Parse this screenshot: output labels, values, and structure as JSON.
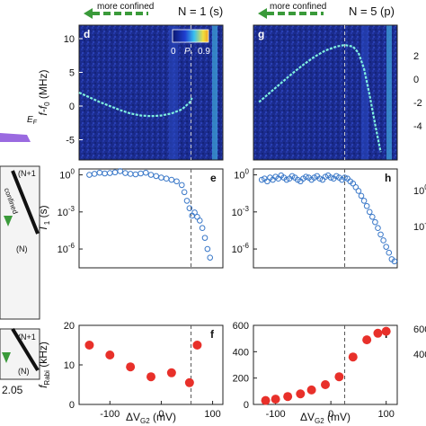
{
  "headers": {
    "left": {
      "arrow_label": "more confined",
      "state_label": "N = 1 (s)"
    },
    "right": {
      "arrow_label": "more confined",
      "state_label": "N = 5 (p)"
    }
  },
  "left_strip": {
    "ef_label": "E",
    "ef_sub": "F",
    "confined_label": "confined",
    "n_plus_top": "(N+1",
    "n_top": "(N)",
    "n_plus_bottom": "(N+1",
    "n_bottom": "(N)",
    "x_tick": "2.05"
  },
  "colors": {
    "map_background": "#1a2a8c",
    "trace": "#7ff0e0",
    "hollow_marker": "#3a78c8",
    "red_marker": "#e8302a",
    "arrow_green": "#3a9a3a",
    "colorbar": [
      "#0a1670",
      "#1f3fd0",
      "#38c0f0",
      "#f0e040",
      "#f0a020"
    ]
  },
  "colorbar": {
    "min_label": "0",
    "symbol": "P",
    "sub": "↑",
    "max_label": "0.9"
  },
  "x_axis": {
    "label": "ΔV",
    "sub": "G2",
    "unit": "(mV)"
  },
  "chart_data": [
    {
      "id": "d",
      "panel": "d",
      "type": "heatmap",
      "ylabel": "f-f",
      "ylabel_sub": "0",
      "ylabel_unit": "(MHz)",
      "ylim": [
        -8,
        12
      ],
      "xlim": [
        -160,
        120
      ],
      "yticks": [
        10,
        5,
        0,
        -5
      ],
      "ytick_labels": [
        "10",
        "5",
        "0",
        "-5"
      ],
      "dashed_x": 58,
      "x": [
        -160,
        -140,
        -120,
        -100,
        -80,
        -60,
        -40,
        -20,
        0,
        20,
        40,
        55,
        60
      ],
      "y": [
        2.0,
        1.3,
        0.6,
        0.0,
        -0.6,
        -1.1,
        -1.4,
        -1.5,
        -1.4,
        -1.1,
        -0.5,
        0.5,
        1.2
      ]
    },
    {
      "id": "g",
      "panel": "g",
      "type": "heatmap",
      "ylim": [
        -5,
        12
      ],
      "xlim": [
        -140,
        120
      ],
      "dashed_x": 25,
      "x": [
        -130,
        -110,
        -90,
        -70,
        -50,
        -30,
        -10,
        10,
        25,
        40,
        50,
        60,
        70,
        80,
        90
      ],
      "y": [
        2.3,
        3.5,
        4.7,
        5.9,
        7.0,
        8.0,
        8.8,
        9.3,
        9.5,
        9.3,
        8.5,
        6.5,
        3.2,
        -0.5,
        -4.0
      ],
      "right_ticks": [
        "2",
        "0",
        "-2",
        "-4"
      ]
    },
    {
      "id": "e",
      "panel": "e",
      "type": "scatter",
      "ylabel": "T",
      "ylabel_sub": "1",
      "ylabel_unit": "(s)",
      "yscale": "log",
      "ylim": [
        3e-08,
        3
      ],
      "yticks": [
        1,
        0.001,
        1e-06
      ],
      "ytick_labels": [
        "10",
        "10",
        "10"
      ],
      "ytick_exp": [
        "0",
        "-3",
        "-6"
      ],
      "xlim": [
        -160,
        120
      ],
      "dashed_x": 58,
      "x": [
        -140,
        -130,
        -120,
        -110,
        -100,
        -90,
        -80,
        -70,
        -60,
        -50,
        -40,
        -30,
        -20,
        -10,
        0,
        10,
        20,
        30,
        40,
        45,
        50,
        55,
        60,
        65,
        70,
        75,
        80,
        85,
        90,
        95
      ],
      "y": [
        1.0,
        1.2,
        1.5,
        1.3,
        1.4,
        1.6,
        2.0,
        1.4,
        1.2,
        1.1,
        1.3,
        1.5,
        1.0,
        0.8,
        0.6,
        0.5,
        0.4,
        0.3,
        0.15,
        0.04,
        0.008,
        0.002,
        0.0005,
        0.0009,
        0.0004,
        0.0002,
        5e-05,
        8e-06,
        1e-06,
        2e-07
      ]
    },
    {
      "id": "h",
      "panel": "h",
      "type": "scatter",
      "yscale": "log",
      "ylim": [
        3e-08,
        3
      ],
      "yticks": [
        1,
        0.001,
        1e-06
      ],
      "ytick_labels": [
        "10",
        "10",
        "10"
      ],
      "ytick_exp": [
        "0",
        "-3",
        "-6"
      ],
      "xlim": [
        -140,
        120
      ],
      "dashed_x": 25,
      "x": [
        -125,
        -120,
        -115,
        -110,
        -105,
        -100,
        -95,
        -90,
        -85,
        -80,
        -75,
        -70,
        -65,
        -60,
        -55,
        -50,
        -45,
        -40,
        -35,
        -30,
        -25,
        -20,
        -15,
        -10,
        -5,
        0,
        5,
        10,
        15,
        20,
        25,
        30,
        35,
        40,
        45,
        50,
        55,
        60,
        65,
        70,
        75,
        80,
        85,
        90,
        95,
        100,
        105,
        110,
        115
      ],
      "y": [
        0.4,
        0.5,
        0.3,
        0.6,
        0.4,
        0.7,
        0.5,
        0.9,
        0.6,
        0.4,
        0.5,
        0.8,
        0.6,
        0.4,
        0.3,
        0.5,
        0.7,
        0.6,
        0.4,
        0.6,
        0.8,
        0.5,
        0.4,
        0.7,
        0.9,
        0.6,
        0.5,
        0.8,
        0.6,
        0.4,
        0.6,
        0.5,
        0.3,
        0.2,
        0.1,
        0.05,
        0.02,
        0.008,
        0.003,
        0.001,
        0.0004,
        0.00015,
        5e-05,
        1.5e-05,
        5e-06,
        1.5e-06,
        5e-07,
        1.5e-07,
        1e-07
      ],
      "right_ticks": [
        "10",
        "10"
      ],
      "right_ticks_exp": [
        "0",
        "-3"
      ]
    },
    {
      "id": "f",
      "panel": "f",
      "type": "scatter",
      "ylabel": "f",
      "ylabel_sub": "Rabi",
      "ylabel_unit": "(kHz)",
      "ylim": [
        0,
        20
      ],
      "yticks": [
        0,
        10,
        20
      ],
      "ytick_labels": [
        "0",
        "10",
        "20"
      ],
      "xlim": [
        -160,
        120
      ],
      "xticks": [
        -100,
        0,
        100
      ],
      "xtick_labels": [
        "-100",
        "0",
        "100"
      ],
      "dashed_x": 58,
      "x": [
        -140,
        -100,
        -60,
        -20,
        20,
        55,
        70
      ],
      "y": [
        15,
        12.5,
        9.5,
        7.0,
        8.0,
        5.5,
        15
      ]
    },
    {
      "id": "i",
      "panel": "i",
      "type": "scatter",
      "ylim": [
        0,
        600
      ],
      "yticks": [
        0,
        200,
        400,
        600
      ],
      "ytick_labels": [
        "0",
        "200",
        "400",
        "600"
      ],
      "xlim": [
        -140,
        120
      ],
      "xticks": [
        -100,
        0,
        100
      ],
      "xtick_labels": [
        "-100",
        "0",
        "100"
      ],
      "dashed_x": 25,
      "x": [
        -118,
        -100,
        -78,
        -55,
        -35,
        -10,
        15,
        40,
        65,
        85,
        100
      ],
      "y": [
        30,
        40,
        60,
        80,
        110,
        150,
        210,
        360,
        490,
        540,
        555
      ],
      "right_ticks": [
        "600",
        "400"
      ]
    }
  ]
}
